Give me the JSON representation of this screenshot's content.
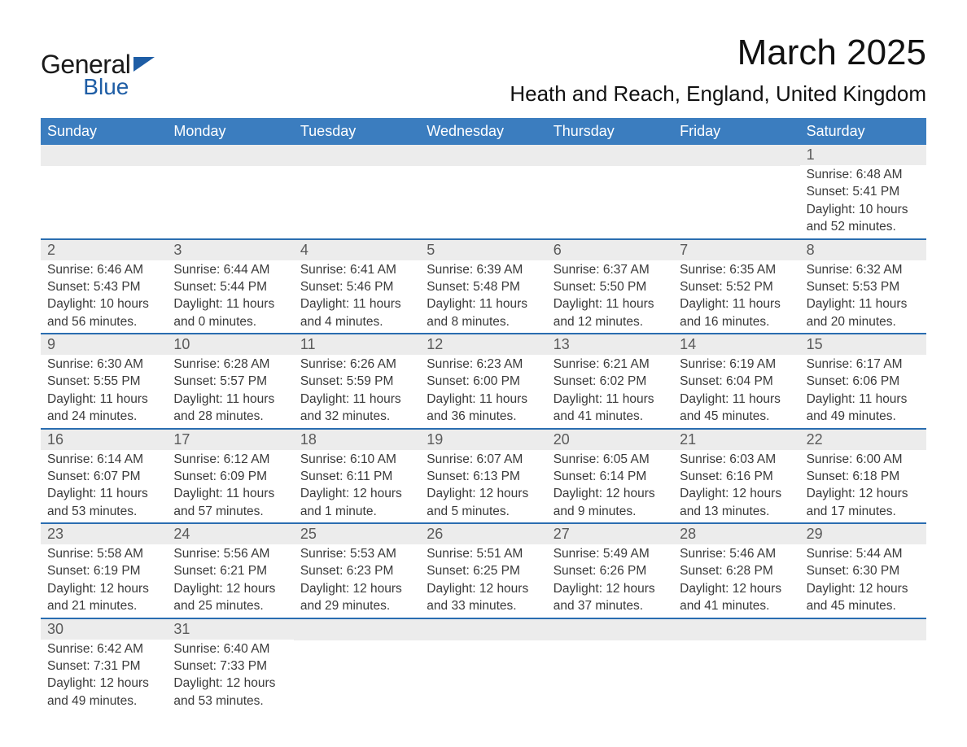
{
  "logo": {
    "line1": "General",
    "line2": "Blue"
  },
  "title": "March 2025",
  "location": "Heath and Reach, England, United Kingdom",
  "colors": {
    "header_blue": "#3b7dbf",
    "row_divider": "#2a6db0",
    "daynum_bg": "#ececec",
    "logo_triangle": "#1e5da5"
  },
  "days_of_week": [
    "Sunday",
    "Monday",
    "Tuesday",
    "Wednesday",
    "Thursday",
    "Friday",
    "Saturday"
  ],
  "weeks": [
    [
      null,
      null,
      null,
      null,
      null,
      null,
      {
        "n": "1",
        "sr": "Sunrise: 6:48 AM",
        "ss": "Sunset: 5:41 PM",
        "d1": "Daylight: 10 hours",
        "d2": "and 52 minutes."
      }
    ],
    [
      {
        "n": "2",
        "sr": "Sunrise: 6:46 AM",
        "ss": "Sunset: 5:43 PM",
        "d1": "Daylight: 10 hours",
        "d2": "and 56 minutes."
      },
      {
        "n": "3",
        "sr": "Sunrise: 6:44 AM",
        "ss": "Sunset: 5:44 PM",
        "d1": "Daylight: 11 hours",
        "d2": "and 0 minutes."
      },
      {
        "n": "4",
        "sr": "Sunrise: 6:41 AM",
        "ss": "Sunset: 5:46 PM",
        "d1": "Daylight: 11 hours",
        "d2": "and 4 minutes."
      },
      {
        "n": "5",
        "sr": "Sunrise: 6:39 AM",
        "ss": "Sunset: 5:48 PM",
        "d1": "Daylight: 11 hours",
        "d2": "and 8 minutes."
      },
      {
        "n": "6",
        "sr": "Sunrise: 6:37 AM",
        "ss": "Sunset: 5:50 PM",
        "d1": "Daylight: 11 hours",
        "d2": "and 12 minutes."
      },
      {
        "n": "7",
        "sr": "Sunrise: 6:35 AM",
        "ss": "Sunset: 5:52 PM",
        "d1": "Daylight: 11 hours",
        "d2": "and 16 minutes."
      },
      {
        "n": "8",
        "sr": "Sunrise: 6:32 AM",
        "ss": "Sunset: 5:53 PM",
        "d1": "Daylight: 11 hours",
        "d2": "and 20 minutes."
      }
    ],
    [
      {
        "n": "9",
        "sr": "Sunrise: 6:30 AM",
        "ss": "Sunset: 5:55 PM",
        "d1": "Daylight: 11 hours",
        "d2": "and 24 minutes."
      },
      {
        "n": "10",
        "sr": "Sunrise: 6:28 AM",
        "ss": "Sunset: 5:57 PM",
        "d1": "Daylight: 11 hours",
        "d2": "and 28 minutes."
      },
      {
        "n": "11",
        "sr": "Sunrise: 6:26 AM",
        "ss": "Sunset: 5:59 PM",
        "d1": "Daylight: 11 hours",
        "d2": "and 32 minutes."
      },
      {
        "n": "12",
        "sr": "Sunrise: 6:23 AM",
        "ss": "Sunset: 6:00 PM",
        "d1": "Daylight: 11 hours",
        "d2": "and 36 minutes."
      },
      {
        "n": "13",
        "sr": "Sunrise: 6:21 AM",
        "ss": "Sunset: 6:02 PM",
        "d1": "Daylight: 11 hours",
        "d2": "and 41 minutes."
      },
      {
        "n": "14",
        "sr": "Sunrise: 6:19 AM",
        "ss": "Sunset: 6:04 PM",
        "d1": "Daylight: 11 hours",
        "d2": "and 45 minutes."
      },
      {
        "n": "15",
        "sr": "Sunrise: 6:17 AM",
        "ss": "Sunset: 6:06 PM",
        "d1": "Daylight: 11 hours",
        "d2": "and 49 minutes."
      }
    ],
    [
      {
        "n": "16",
        "sr": "Sunrise: 6:14 AM",
        "ss": "Sunset: 6:07 PM",
        "d1": "Daylight: 11 hours",
        "d2": "and 53 minutes."
      },
      {
        "n": "17",
        "sr": "Sunrise: 6:12 AM",
        "ss": "Sunset: 6:09 PM",
        "d1": "Daylight: 11 hours",
        "d2": "and 57 minutes."
      },
      {
        "n": "18",
        "sr": "Sunrise: 6:10 AM",
        "ss": "Sunset: 6:11 PM",
        "d1": "Daylight: 12 hours",
        "d2": "and 1 minute."
      },
      {
        "n": "19",
        "sr": "Sunrise: 6:07 AM",
        "ss": "Sunset: 6:13 PM",
        "d1": "Daylight: 12 hours",
        "d2": "and 5 minutes."
      },
      {
        "n": "20",
        "sr": "Sunrise: 6:05 AM",
        "ss": "Sunset: 6:14 PM",
        "d1": "Daylight: 12 hours",
        "d2": "and 9 minutes."
      },
      {
        "n": "21",
        "sr": "Sunrise: 6:03 AM",
        "ss": "Sunset: 6:16 PM",
        "d1": "Daylight: 12 hours",
        "d2": "and 13 minutes."
      },
      {
        "n": "22",
        "sr": "Sunrise: 6:00 AM",
        "ss": "Sunset: 6:18 PM",
        "d1": "Daylight: 12 hours",
        "d2": "and 17 minutes."
      }
    ],
    [
      {
        "n": "23",
        "sr": "Sunrise: 5:58 AM",
        "ss": "Sunset: 6:19 PM",
        "d1": "Daylight: 12 hours",
        "d2": "and 21 minutes."
      },
      {
        "n": "24",
        "sr": "Sunrise: 5:56 AM",
        "ss": "Sunset: 6:21 PM",
        "d1": "Daylight: 12 hours",
        "d2": "and 25 minutes."
      },
      {
        "n": "25",
        "sr": "Sunrise: 5:53 AM",
        "ss": "Sunset: 6:23 PM",
        "d1": "Daylight: 12 hours",
        "d2": "and 29 minutes."
      },
      {
        "n": "26",
        "sr": "Sunrise: 5:51 AM",
        "ss": "Sunset: 6:25 PM",
        "d1": "Daylight: 12 hours",
        "d2": "and 33 minutes."
      },
      {
        "n": "27",
        "sr": "Sunrise: 5:49 AM",
        "ss": "Sunset: 6:26 PM",
        "d1": "Daylight: 12 hours",
        "d2": "and 37 minutes."
      },
      {
        "n": "28",
        "sr": "Sunrise: 5:46 AM",
        "ss": "Sunset: 6:28 PM",
        "d1": "Daylight: 12 hours",
        "d2": "and 41 minutes."
      },
      {
        "n": "29",
        "sr": "Sunrise: 5:44 AM",
        "ss": "Sunset: 6:30 PM",
        "d1": "Daylight: 12 hours",
        "d2": "and 45 minutes."
      }
    ],
    [
      {
        "n": "30",
        "sr": "Sunrise: 6:42 AM",
        "ss": "Sunset: 7:31 PM",
        "d1": "Daylight: 12 hours",
        "d2": "and 49 minutes."
      },
      {
        "n": "31",
        "sr": "Sunrise: 6:40 AM",
        "ss": "Sunset: 7:33 PM",
        "d1": "Daylight: 12 hours",
        "d2": "and 53 minutes."
      },
      null,
      null,
      null,
      null,
      null
    ]
  ]
}
